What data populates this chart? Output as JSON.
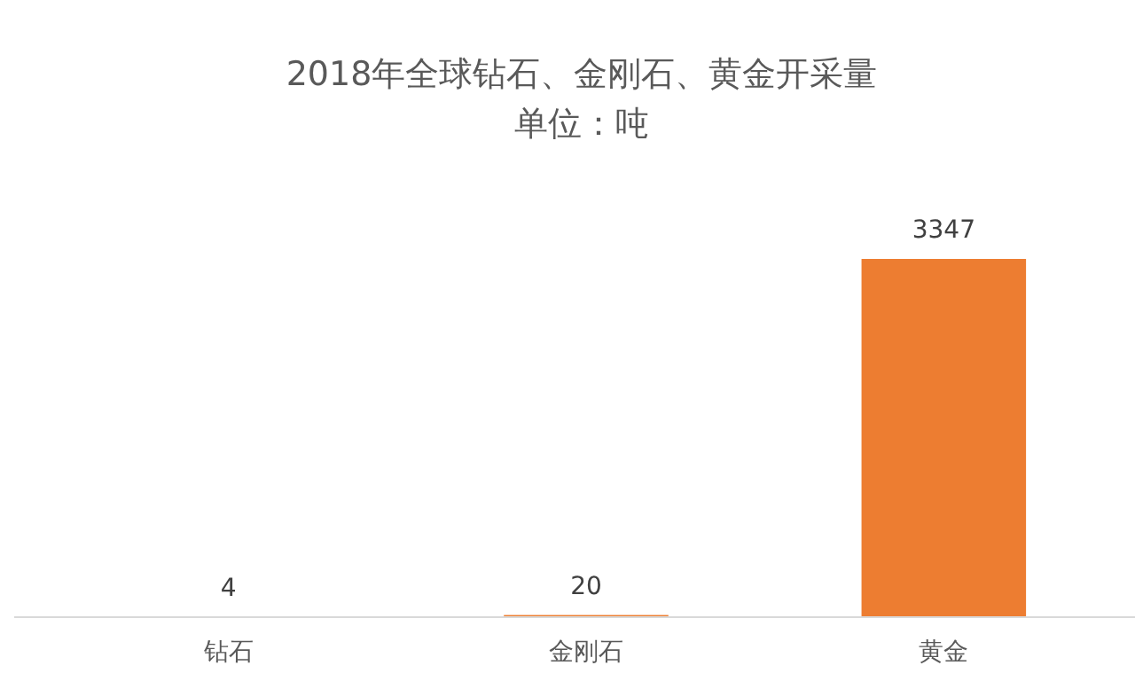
{
  "chart_data": {
    "type": "bar",
    "title": "2018年全球钻石、金刚石、黄金开采量",
    "subtitle": "单位：吨",
    "categories": [
      "钻石",
      "金刚石",
      "黄金"
    ],
    "values": [
      4,
      20,
      3347
    ],
    "color": "#ed7d31",
    "data_labels": true
  }
}
